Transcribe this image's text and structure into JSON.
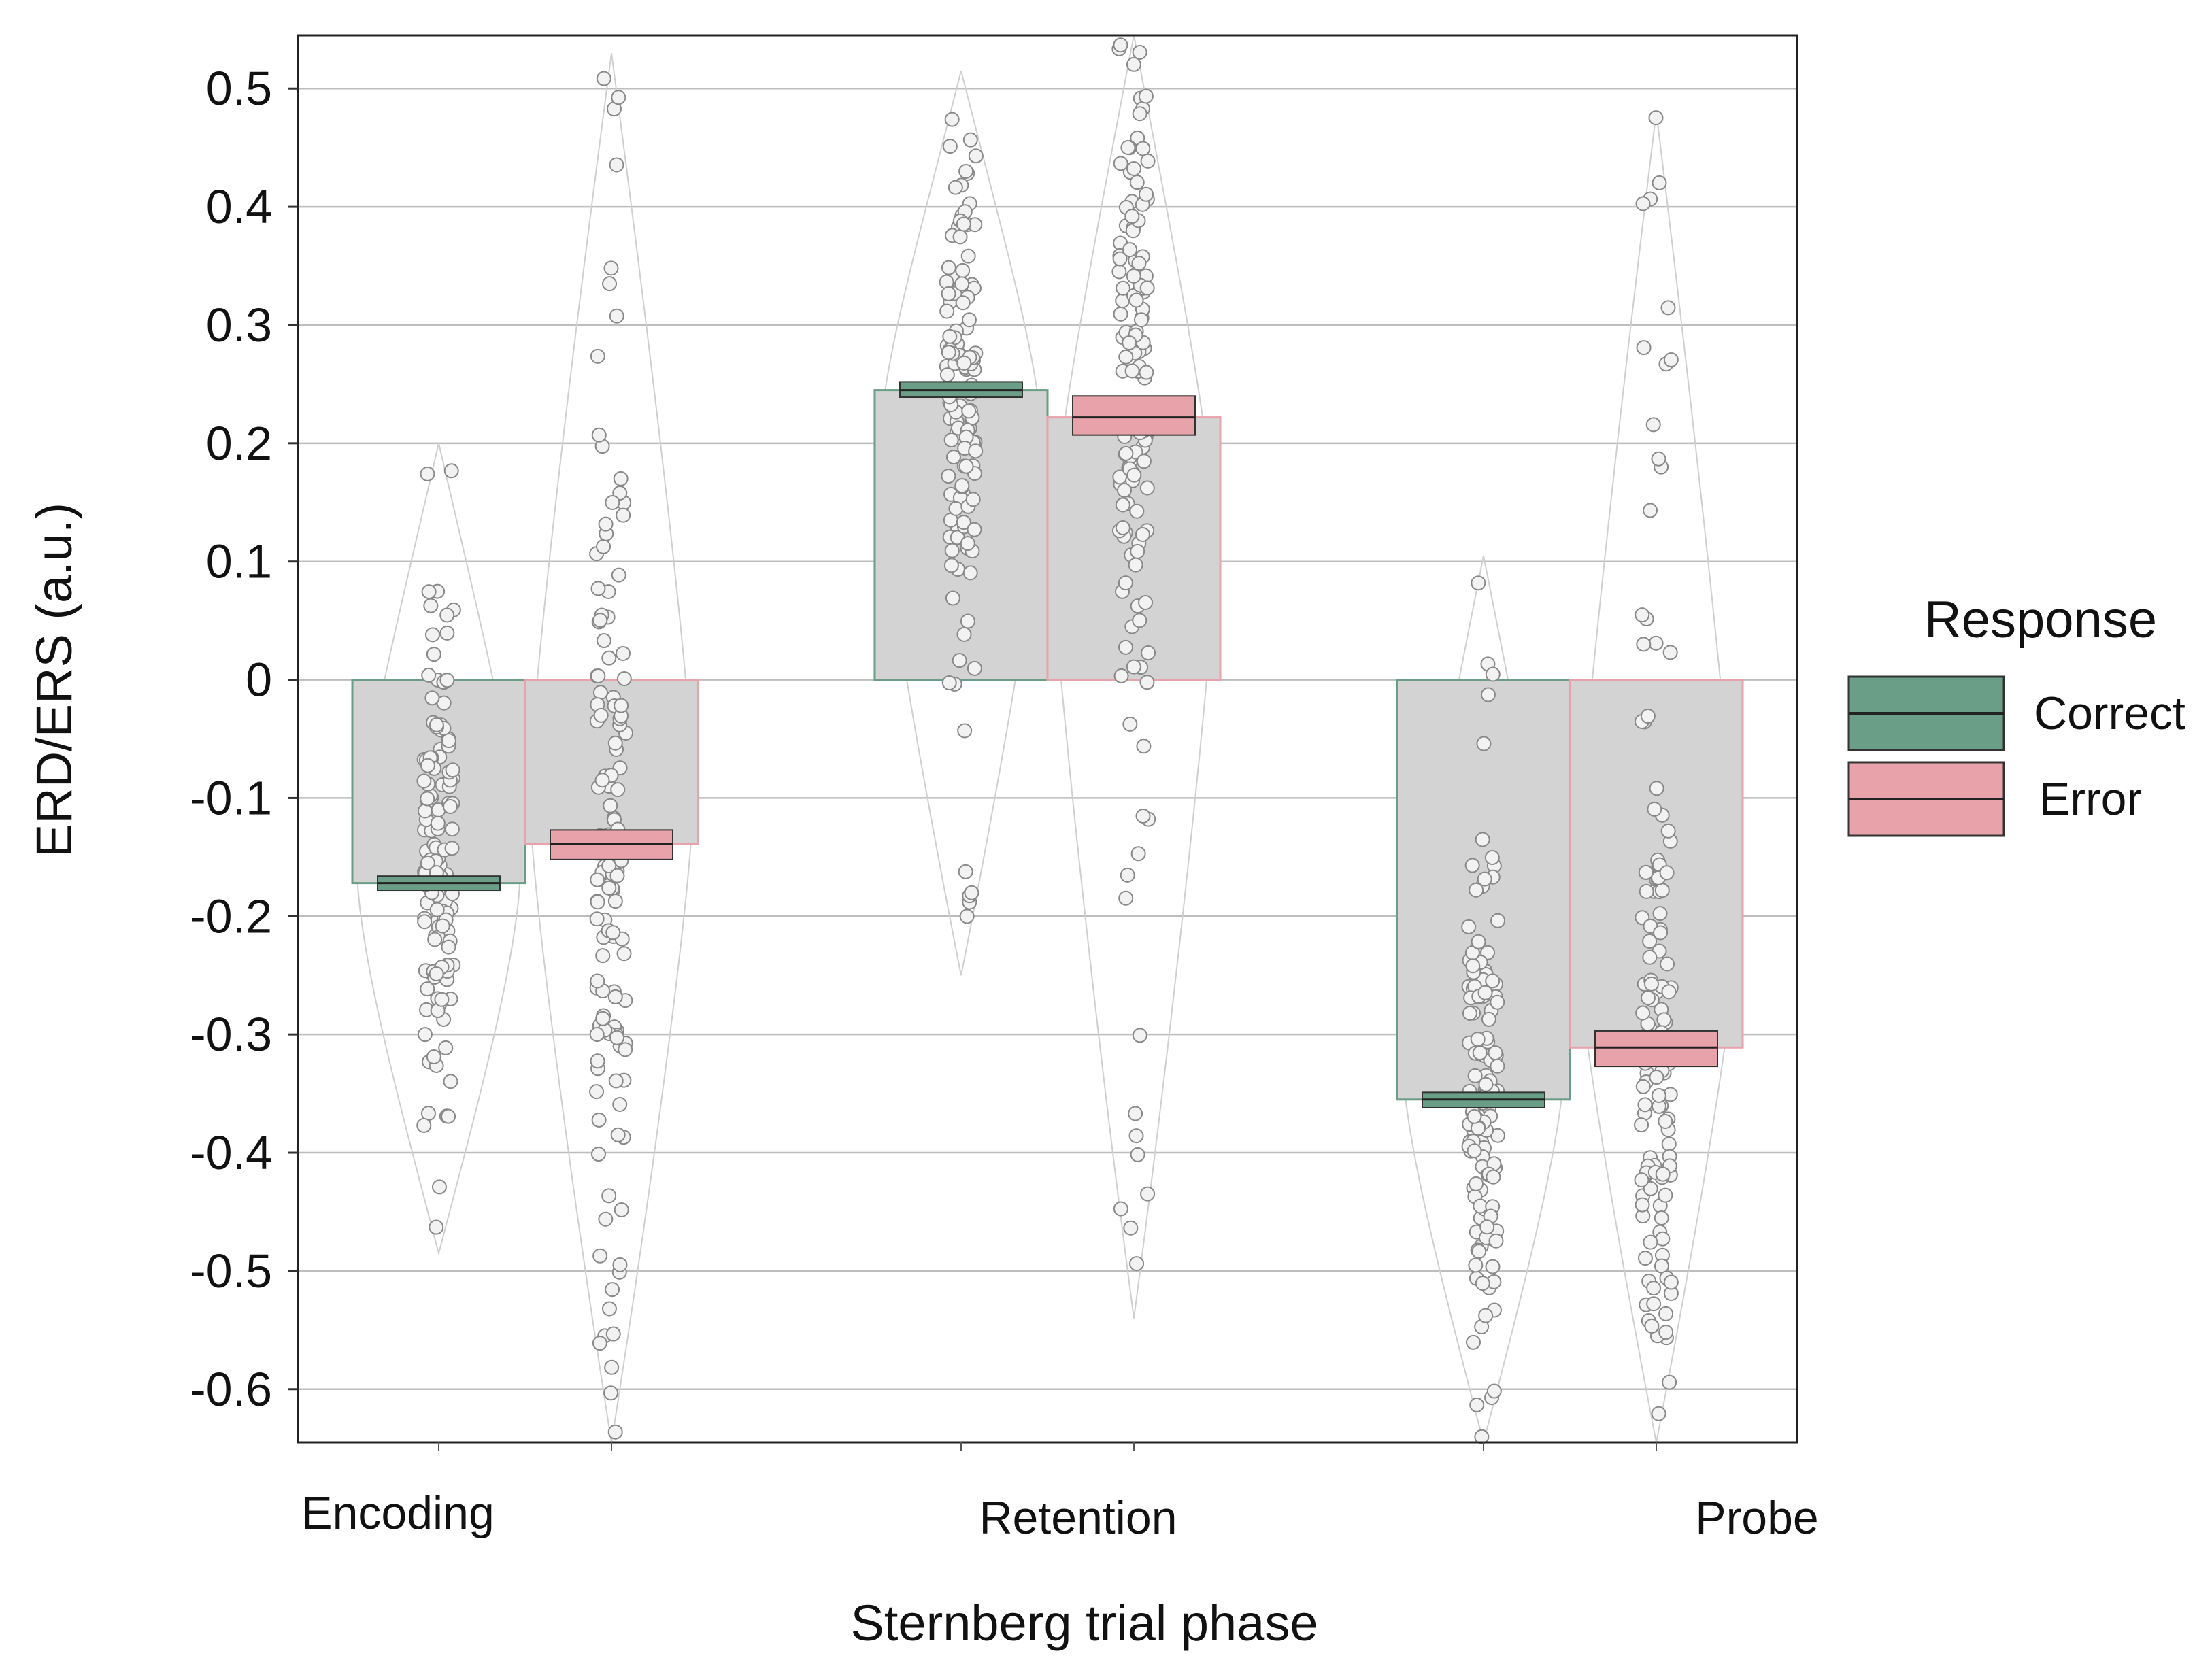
{
  "chart_data": {
    "type": "bar",
    "title": "",
    "xlabel": "Sternberg trial phase",
    "ylabel": "ERD/ERS (a.u.)",
    "ylim": [
      -0.645,
      0.545
    ],
    "yticks": [
      0.5,
      0.4,
      0.3,
      0.2,
      0.1,
      0,
      -0.1,
      -0.2,
      -0.3,
      -0.4,
      -0.5,
      -0.6
    ],
    "ytick_labels": [
      "0.5",
      "0.4",
      "0.3",
      "0.2",
      "0.1",
      "0",
      "-0.1",
      "-0.2",
      "-0.3",
      "-0.4",
      "-0.5",
      "-0.6"
    ],
    "grid": true,
    "legend": {
      "title": "Response",
      "position": "right"
    },
    "categories": [
      "Encoding",
      "Retention",
      "Probe"
    ],
    "series": [
      {
        "name": "Correct",
        "color": "#6b9e86",
        "fill": "#6b9e86",
        "values": [
          -0.172,
          0.245,
          -0.355
        ],
        "ci": [
          [
            -0.178,
            -0.166
          ],
          [
            0.239,
            0.252
          ],
          [
            -0.362,
            -0.349
          ]
        ],
        "spread": [
          [
            -0.485,
            0.2
          ],
          [
            -0.25,
            0.515
          ],
          [
            -0.645,
            0.105
          ]
        ]
      },
      {
        "name": "Error",
        "color": "#e8a3aa",
        "fill": "#e8a3aa",
        "values": [
          -0.139,
          0.222,
          -0.311
        ],
        "ci": [
          [
            -0.152,
            -0.127
          ],
          [
            0.207,
            0.24
          ],
          [
            -0.327,
            -0.297
          ]
        ],
        "spread": [
          [
            -0.645,
            0.53
          ],
          [
            -0.54,
            0.545
          ],
          [
            -0.645,
            0.48
          ]
        ]
      }
    ],
    "bar_fill": "#d3d3d3",
    "point_color": "#888888"
  }
}
